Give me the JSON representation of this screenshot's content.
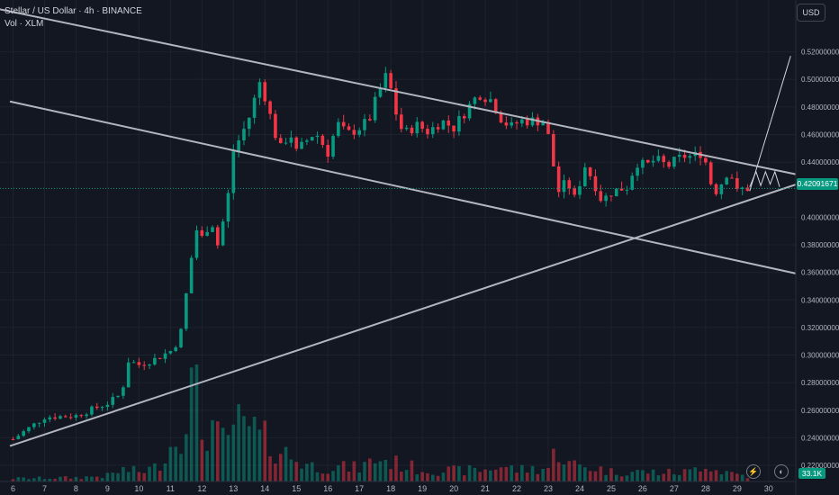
{
  "header": {
    "title": "Stellar / US Dollar · 4h · BINANCE",
    "volume_label": "Vol · XLM"
  },
  "currency_button": "USD",
  "current_price_label": "0.42091671",
  "volume_badge": "33.1K",
  "colors": {
    "up": "#089981",
    "down": "#f23645",
    "background": "#131722",
    "trendline": "#b2b5be"
  },
  "chart_data": {
    "type": "candlestick",
    "x_axis": {
      "labels": [
        "6",
        "7",
        "8",
        "9",
        "10",
        "11",
        "12",
        "13",
        "14",
        "15",
        "16",
        "17",
        "18",
        "19",
        "20",
        "21",
        "22",
        "23",
        "24",
        "25",
        "26",
        "27",
        "28",
        "29",
        "30"
      ]
    },
    "y_axis": {
      "range": [
        0.205,
        0.555
      ],
      "labels": [
        "0.52000000",
        "0.50000000",
        "0.48000000",
        "0.46000000",
        "0.44000000",
        "0.40000000",
        "0.38000000",
        "0.36000000",
        "0.34000000",
        "0.32000000",
        "0.30000000",
        "0.28000000",
        "0.26000000",
        "0.24000000",
        "0.22000000"
      ]
    },
    "current_price": 0.42091671,
    "trendlines": [
      {
        "name": "upper-resistance",
        "from": [
          4.5,
          0.556
        ],
        "to": [
          30.9,
          0.431
        ]
      },
      {
        "name": "long-descending",
        "from": [
          5.9,
          0.484
        ],
        "to": [
          30.9,
          0.359
        ]
      },
      {
        "name": "ascending-support",
        "from": [
          5.9,
          0.234
        ],
        "to": [
          30.9,
          0.424
        ]
      }
    ],
    "projection": [
      [
        29.4,
        0.419
      ],
      [
        30.7,
        0.517
      ]
    ],
    "zigzag": [
      [
        29.4,
        0.422
      ],
      [
        29.6,
        0.433
      ],
      [
        29.75,
        0.423
      ],
      [
        29.9,
        0.433
      ],
      [
        30.05,
        0.424
      ],
      [
        30.2,
        0.433
      ],
      [
        30.35,
        0.422
      ]
    ],
    "close_path": [
      [
        6.0,
        0.239
      ],
      [
        7.0,
        0.255
      ],
      [
        8.0,
        0.256
      ],
      [
        9.0,
        0.265
      ],
      [
        9.45,
        0.272
      ],
      [
        9.65,
        0.296
      ],
      [
        10.0,
        0.293
      ],
      [
        10.5,
        0.297
      ],
      [
        11.0,
        0.303
      ],
      [
        11.3,
        0.312
      ],
      [
        11.55,
        0.352
      ],
      [
        11.8,
        0.392
      ],
      [
        12.0,
        0.385
      ],
      [
        12.3,
        0.398
      ],
      [
        12.5,
        0.38
      ],
      [
        12.8,
        0.41
      ],
      [
        13.0,
        0.448
      ],
      [
        13.3,
        0.462
      ],
      [
        13.6,
        0.478
      ],
      [
        13.8,
        0.5
      ],
      [
        14.0,
        0.488
      ],
      [
        14.3,
        0.462
      ],
      [
        14.5,
        0.45
      ],
      [
        14.8,
        0.462
      ],
      [
        15.0,
        0.447
      ],
      [
        15.3,
        0.455
      ],
      [
        15.6,
        0.462
      ],
      [
        16.0,
        0.447
      ],
      [
        16.3,
        0.468
      ],
      [
        16.6,
        0.46
      ],
      [
        17.0,
        0.465
      ],
      [
        17.3,
        0.47
      ],
      [
        17.6,
        0.49
      ],
      [
        17.9,
        0.505
      ],
      [
        18.1,
        0.48
      ],
      [
        18.4,
        0.46
      ],
      [
        18.8,
        0.467
      ],
      [
        19.2,
        0.462
      ],
      [
        19.6,
        0.47
      ],
      [
        20.0,
        0.465
      ],
      [
        20.4,
        0.478
      ],
      [
        20.8,
        0.49
      ],
      [
        21.2,
        0.485
      ],
      [
        21.5,
        0.472
      ],
      [
        21.8,
        0.465
      ],
      [
        22.1,
        0.47
      ],
      [
        22.5,
        0.47
      ],
      [
        22.9,
        0.47
      ],
      [
        23.1,
        0.447
      ],
      [
        23.3,
        0.418
      ],
      [
        23.6,
        0.426
      ],
      [
        23.9,
        0.41
      ],
      [
        24.1,
        0.44
      ],
      [
        24.4,
        0.428
      ],
      [
        24.7,
        0.412
      ],
      [
        25.0,
        0.418
      ],
      [
        25.2,
        0.42
      ],
      [
        25.5,
        0.422
      ],
      [
        25.8,
        0.44
      ],
      [
        26.1,
        0.437
      ],
      [
        26.4,
        0.442
      ],
      [
        26.8,
        0.437
      ],
      [
        27.1,
        0.442
      ],
      [
        27.4,
        0.445
      ],
      [
        27.6,
        0.443
      ],
      [
        27.8,
        0.448
      ],
      [
        28.0,
        0.44
      ],
      [
        28.2,
        0.422
      ],
      [
        28.4,
        0.418
      ],
      [
        28.6,
        0.432
      ],
      [
        28.8,
        0.432
      ],
      [
        29.0,
        0.418
      ],
      [
        29.2,
        0.421
      ],
      [
        29.4,
        0.421
      ]
    ],
    "volume_profile": [
      [
        6.0,
        0.16
      ],
      [
        8.0,
        0.2
      ],
      [
        9.0,
        0.3
      ],
      [
        9.5,
        0.6
      ],
      [
        10.0,
        0.5
      ],
      [
        10.5,
        0.7
      ],
      [
        11.0,
        1.8
      ],
      [
        11.3,
        2.6
      ],
      [
        11.5,
        4.0
      ],
      [
        11.8,
        5.2
      ],
      [
        12.0,
        2.5
      ],
      [
        12.3,
        3.0
      ],
      [
        12.5,
        2.2
      ],
      [
        12.8,
        1.8
      ],
      [
        13.0,
        3.2
      ],
      [
        13.3,
        2.5
      ],
      [
        13.6,
        2.8
      ],
      [
        13.8,
        2.2
      ],
      [
        14.0,
        2.1
      ],
      [
        14.5,
        1.6
      ],
      [
        15.0,
        1.1
      ],
      [
        15.5,
        0.8
      ],
      [
        16.0,
        0.75
      ],
      [
        17.0,
        0.7
      ],
      [
        17.6,
        1.2
      ],
      [
        18.0,
        1.0
      ],
      [
        18.5,
        0.8
      ],
      [
        19.0,
        0.6
      ],
      [
        20.0,
        0.55
      ],
      [
        21.0,
        0.6
      ],
      [
        21.5,
        0.8
      ],
      [
        22.0,
        0.6
      ],
      [
        23.0,
        0.7
      ],
      [
        23.3,
        1.8
      ],
      [
        23.6,
        0.9
      ],
      [
        24.0,
        0.8
      ],
      [
        24.5,
        0.7
      ],
      [
        25.0,
        0.5
      ],
      [
        26.0,
        0.5
      ],
      [
        27.0,
        0.45
      ],
      [
        27.5,
        0.5
      ],
      [
        28.0,
        1.0
      ],
      [
        28.3,
        0.6
      ],
      [
        29.0,
        0.4
      ],
      [
        29.4,
        0.25
      ]
    ],
    "candles_per_day": 6
  }
}
